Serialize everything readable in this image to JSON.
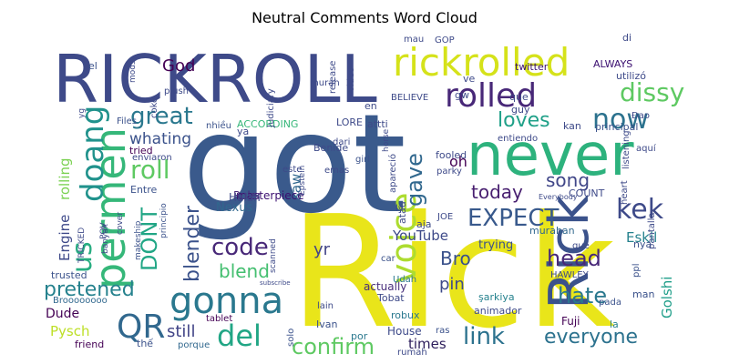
{
  "chart_data": {
    "type": "wordcloud",
    "title": "Neutral Comments Word Cloud",
    "colormap": "viridis",
    "background": "#ffffff",
    "words": [
      {
        "text": "Rick",
        "weight": 1.0,
        "color": "#e9e51a"
      },
      {
        "text": "got",
        "weight": 0.95,
        "color": "#3a5a8c"
      },
      {
        "text": "RICKROLL",
        "weight": 0.75,
        "color": "#3e4a89"
      },
      {
        "text": "never",
        "weight": 0.65,
        "color": "#2db27d"
      },
      {
        "text": "permen",
        "weight": 0.45,
        "color": "#35b779"
      },
      {
        "text": "rickrolled",
        "weight": 0.44,
        "color": "#d5e21a"
      },
      {
        "text": "Rick",
        "weight": 0.42,
        "color": "#3b528b"
      },
      {
        "text": "gonna",
        "weight": 0.36,
        "color": "#2a788e"
      },
      {
        "text": "rolled",
        "weight": 0.3,
        "color": "#482878"
      },
      {
        "text": "EXPECT",
        "weight": 0.28,
        "color": "#38598c"
      },
      {
        "text": "voice",
        "weight": 0.27,
        "color": "#addc30"
      },
      {
        "text": "doang",
        "weight": 0.26,
        "color": "#20928c"
      },
      {
        "text": "QR",
        "weight": 0.26,
        "color": "#31688e"
      },
      {
        "text": "now",
        "weight": 0.24,
        "color": "#2c728e"
      },
      {
        "text": "kek",
        "weight": 0.23,
        "color": "#3e4a89"
      },
      {
        "text": "us",
        "weight": 0.23,
        "color": "#27ad81"
      },
      {
        "text": "del",
        "weight": 0.23,
        "color": "#21a685"
      },
      {
        "text": "code",
        "weight": 0.22,
        "color": "#482878"
      },
      {
        "text": "roll",
        "weight": 0.22,
        "color": "#5ec962"
      },
      {
        "text": "DONT",
        "weight": 0.21,
        "color": "#21a685"
      },
      {
        "text": "dissy",
        "weight": 0.2,
        "color": "#5ec962"
      },
      {
        "text": "great",
        "weight": 0.2,
        "color": "#2a788e"
      },
      {
        "text": "gave",
        "weight": 0.2,
        "color": "#31688e"
      },
      {
        "text": "link",
        "weight": 0.2,
        "color": "#2c728e"
      },
      {
        "text": "pretened",
        "weight": 0.19,
        "color": "#26828e"
      },
      {
        "text": "blender",
        "weight": 0.19,
        "color": "#3b528b"
      },
      {
        "text": "confirm",
        "weight": 0.19,
        "color": "#5ec962"
      },
      {
        "text": "everyone",
        "weight": 0.19,
        "color": "#2c728e"
      },
      {
        "text": "hate",
        "weight": 0.18,
        "color": "#2a788e"
      },
      {
        "text": "head",
        "weight": 0.18,
        "color": "#482878"
      },
      {
        "text": "blend",
        "weight": 0.17,
        "color": "#44bf70"
      },
      {
        "text": "loves",
        "weight": 0.17,
        "color": "#1fa088"
      },
      {
        "text": "today",
        "weight": 0.17,
        "color": "#481f70"
      },
      {
        "text": "Bro",
        "weight": 0.17,
        "color": "#3b528b"
      },
      {
        "text": "song",
        "weight": 0.16,
        "color": "#404688"
      },
      {
        "text": "God",
        "weight": 0.15,
        "color": "#440154"
      },
      {
        "text": "Engine",
        "weight": 0.14,
        "color": "#3e4989"
      },
      {
        "text": "rolling",
        "weight": 0.14,
        "color": "#7ad151"
      },
      {
        "text": "whating",
        "weight": 0.13,
        "color": "#3b528b"
      },
      {
        "text": "pin",
        "weight": 0.13,
        "color": "#3e4a89"
      },
      {
        "text": "yr",
        "weight": 0.13,
        "color": "#414487"
      },
      {
        "text": "oh",
        "weight": 0.13,
        "color": "#440154"
      },
      {
        "text": "saw",
        "weight": 0.12,
        "color": "#31688e"
      },
      {
        "text": "Golshi",
        "weight": 0.12,
        "color": "#1f9e89"
      },
      {
        "text": "Eskil",
        "weight": 0.11,
        "color": "#26828e"
      },
      {
        "text": "YouTube",
        "weight": 0.1,
        "color": "#3e4a89"
      },
      {
        "text": "still",
        "weight": 0.1,
        "color": "#414487"
      },
      {
        "text": "times",
        "weight": 0.1,
        "color": "#2d1e5c"
      },
      {
        "text": "Pysch",
        "weight": 0.1,
        "color": "#bddf26"
      },
      {
        "text": "Dude",
        "weight": 0.09,
        "color": "#440154"
      },
      {
        "text": "masterpiece",
        "weight": 0.09,
        "color": "#3b0f70"
      },
      {
        "text": "Nexus",
        "weight": 0.08,
        "color": "#31688e"
      },
      {
        "text": "trying",
        "weight": 0.08,
        "color": "#3b528b"
      },
      {
        "text": "murahan",
        "weight": 0.07,
        "color": "#31688e"
      },
      {
        "text": "actually",
        "weight": 0.07,
        "color": "#472d7b"
      },
      {
        "text": "Ruler",
        "weight": 0.07,
        "color": "#482878"
      },
      {
        "text": "Halah",
        "weight": 0.07,
        "color": "#3e4a89"
      },
      {
        "text": "Benide",
        "weight": 0.07,
        "color": "#3e4a89"
      },
      {
        "text": "Ivan",
        "weight": 0.07,
        "color": "#3b528b"
      },
      {
        "text": "robux",
        "weight": 0.07,
        "color": "#2a788e"
      },
      {
        "text": "twitter",
        "weight": 0.07,
        "color": "#3b0f70"
      },
      {
        "text": "ALWAYS",
        "weight": 0.06,
        "color": "#3b0f70"
      },
      {
        "text": "COUNT",
        "weight": 0.06,
        "color": "#3e4a89"
      },
      {
        "text": "trusted",
        "weight": 0.06,
        "color": "#3b528b"
      },
      {
        "text": "Broooooooo",
        "weight": 0.06,
        "color": "#31688e"
      },
      {
        "text": "tablet",
        "weight": 0.06,
        "color": "#440154"
      },
      {
        "text": "friend",
        "weight": 0.06,
        "color": "#440154"
      },
      {
        "text": "thế",
        "weight": 0.06,
        "color": "#3b528b"
      },
      {
        "text": "porque",
        "weight": 0.06,
        "color": "#31688e"
      },
      {
        "text": "solo",
        "weight": 0.06,
        "color": "#3b528b"
      },
      {
        "text": "lain",
        "weight": 0.06,
        "color": "#3e4a89"
      },
      {
        "text": "House",
        "weight": 0.06,
        "color": "#3e4a89"
      },
      {
        "text": "Tobat",
        "weight": 0.06,
        "color": "#3e4a89"
      },
      {
        "text": "Udah",
        "weight": 0.06,
        "color": "#2a788e"
      },
      {
        "text": "car",
        "weight": 0.06,
        "color": "#3b528b"
      },
      {
        "text": "şarkiya",
        "weight": 0.06,
        "color": "#26828e"
      },
      {
        "text": "pada",
        "weight": 0.06,
        "color": "#3b528b"
      },
      {
        "text": "Fuji",
        "weight": 0.06,
        "color": "#440154"
      },
      {
        "text": "ras",
        "weight": 0.06,
        "color": "#3b528b"
      },
      {
        "text": "rumah",
        "weight": 0.06,
        "color": "#3e4a89"
      },
      {
        "text": "por",
        "weight": 0.06,
        "color": "#2a788e"
      },
      {
        "text": "girl",
        "weight": 0.06,
        "color": "#3b528b"
      },
      {
        "text": "la",
        "weight": 0.06,
        "color": "#26828e"
      },
      {
        "text": "man",
        "weight": 0.06,
        "color": "#3b528b"
      },
      {
        "text": "ppl",
        "weight": 0.06,
        "color": "#3b528b"
      },
      {
        "text": "nya",
        "weight": 0.06,
        "color": "#3b528b"
      },
      {
        "text": "qué",
        "weight": 0.06,
        "color": "#3e4a89"
      },
      {
        "text": "aja",
        "weight": 0.06,
        "color": "#3e4a89"
      },
      {
        "text": "lý",
        "weight": 0.06,
        "color": "#3e4a89"
      },
      {
        "text": "JOE",
        "weight": 0.05,
        "color": "#3e4a89"
      },
      {
        "text": "atau",
        "weight": 0.06,
        "color": "#3e4a89"
      },
      {
        "text": "parky",
        "weight": 0.06,
        "color": "#3e4a89"
      },
      {
        "text": "fooled",
        "weight": 0.06,
        "color": "#3e4a89"
      },
      {
        "text": "kan",
        "weight": 0.06,
        "color": "#3e4a89"
      },
      {
        "text": "principal",
        "weight": 0.06,
        "color": "#3b528b"
      },
      {
        "text": "entiendo",
        "weight": 0.05,
        "color": "#3e4a89"
      },
      {
        "text": "dari",
        "weight": 0.05,
        "color": "#3e4a89"
      },
      {
        "text": "emas",
        "weight": 0.05,
        "color": "#3e4a89"
      },
      {
        "text": "este",
        "weight": 0.05,
        "color": "#3e4a89"
      },
      {
        "text": "ya",
        "weight": 0.05,
        "color": "#3e4a89"
      },
      {
        "text": "tried",
        "weight": 0.05,
        "color": "#440154"
      },
      {
        "text": "enviaron",
        "weight": 0.05,
        "color": "#3e4a89"
      },
      {
        "text": "Entre",
        "weight": 0.05,
        "color": "#3b528b"
      },
      {
        "text": "principio",
        "weight": 0.05,
        "color": "#3b528b"
      },
      {
        "text": "makeship",
        "weight": 0.05,
        "color": "#3b528b"
      },
      {
        "text": "LORE",
        "weight": 0.05,
        "color": "#3e4a89"
      },
      {
        "text": "attti",
        "weight": 0.05,
        "color": "#3e4a89"
      },
      {
        "text": "ACCORDING",
        "weight": 0.05,
        "color": "#35b779"
      },
      {
        "text": "nhiều",
        "weight": 0.05,
        "color": "#3b528b"
      },
      {
        "text": "Files",
        "weight": 0.05,
        "color": "#3b528b"
      },
      {
        "text": "el",
        "weight": 0.05,
        "color": "#3b528b"
      },
      {
        "text": "mau",
        "weight": 0.05,
        "color": "#3e4a89"
      },
      {
        "text": "GOP",
        "weight": 0.05,
        "color": "#3e4a89"
      },
      {
        "text": "di",
        "weight": 0.05,
        "color": "#3e4a89"
      },
      {
        "text": "BELIEVE",
        "weight": 0.05,
        "color": "#3e4a89"
      },
      {
        "text": "en",
        "weight": 0.05,
        "color": "#3e4a89"
      },
      {
        "text": "gw",
        "weight": 0.05,
        "color": "#3e4a89"
      },
      {
        "text": "que",
        "weight": 0.05,
        "color": "#3e4a89"
      },
      {
        "text": "guy",
        "weight": 0.05,
        "color": "#3e4a89"
      },
      {
        "text": "Đao",
        "weight": 0.05,
        "color": "#3e4a89"
      },
      {
        "text": "aquí",
        "weight": 0.05,
        "color": "#3e4a89"
      },
      {
        "text": "utilizó",
        "weight": 0.05,
        "color": "#3e4a89"
      },
      {
        "text": "plush",
        "weight": 0.05,
        "color": "#3e4a89"
      },
      {
        "text": "murah",
        "weight": 0.05,
        "color": "#3e4a89"
      },
      {
        "text": "video",
        "weight": 0.05,
        "color": "#3e4a89"
      },
      {
        "text": "release",
        "weight": 0.05,
        "color": "#3e4a89"
      },
      {
        "text": "coke",
        "weight": 0.05,
        "color": "#3e4a89"
      },
      {
        "text": "mods",
        "weight": 0.05,
        "color": "#3e4a89"
      },
      {
        "text": "yg",
        "weight": 0.05,
        "color": "#3e4a89"
      },
      {
        "text": "Judiciary",
        "weight": 0.05,
        "color": "#3e4a89"
      },
      {
        "text": "Epstein",
        "weight": 0.05,
        "color": "#3e4a89"
      },
      {
        "text": "horse",
        "weight": 0.05,
        "color": "#3e4a89"
      },
      {
        "text": "apareció",
        "weight": 0.05,
        "color": "#3e4a89"
      },
      {
        "text": "scanned",
        "weight": 0.05,
        "color": "#3e4a89"
      },
      {
        "text": "animador",
        "weight": 0.05,
        "color": "#3e4a89"
      },
      {
        "text": "Everybody",
        "weight": 0.04,
        "color": "#3e4a89"
      },
      {
        "text": "heart",
        "weight": 0.05,
        "color": "#3e4a89"
      },
      {
        "text": "pantalla",
        "weight": 0.05,
        "color": "#3e4a89"
      },
      {
        "text": "listening",
        "weight": 0.05,
        "color": "#3e4a89"
      },
      {
        "text": "TRICKED",
        "weight": 0.05,
        "color": "#3e4a89"
      },
      {
        "text": "banyak",
        "weight": 0.05,
        "color": "#3e4a89"
      },
      {
        "text": "POV",
        "weight": 0.05,
        "color": "#3e4a89"
      },
      {
        "text": "cover",
        "weight": 0.05,
        "color": "#3e4a89"
      },
      {
        "text": "HAWLEY",
        "weight": 0.05,
        "color": "#3e4a89"
      },
      {
        "text": "subscribe",
        "weight": 0.04,
        "color": "#3e4a89"
      },
      {
        "text": "ve",
        "weight": 0.05,
        "color": "#3e4a89"
      }
    ]
  }
}
